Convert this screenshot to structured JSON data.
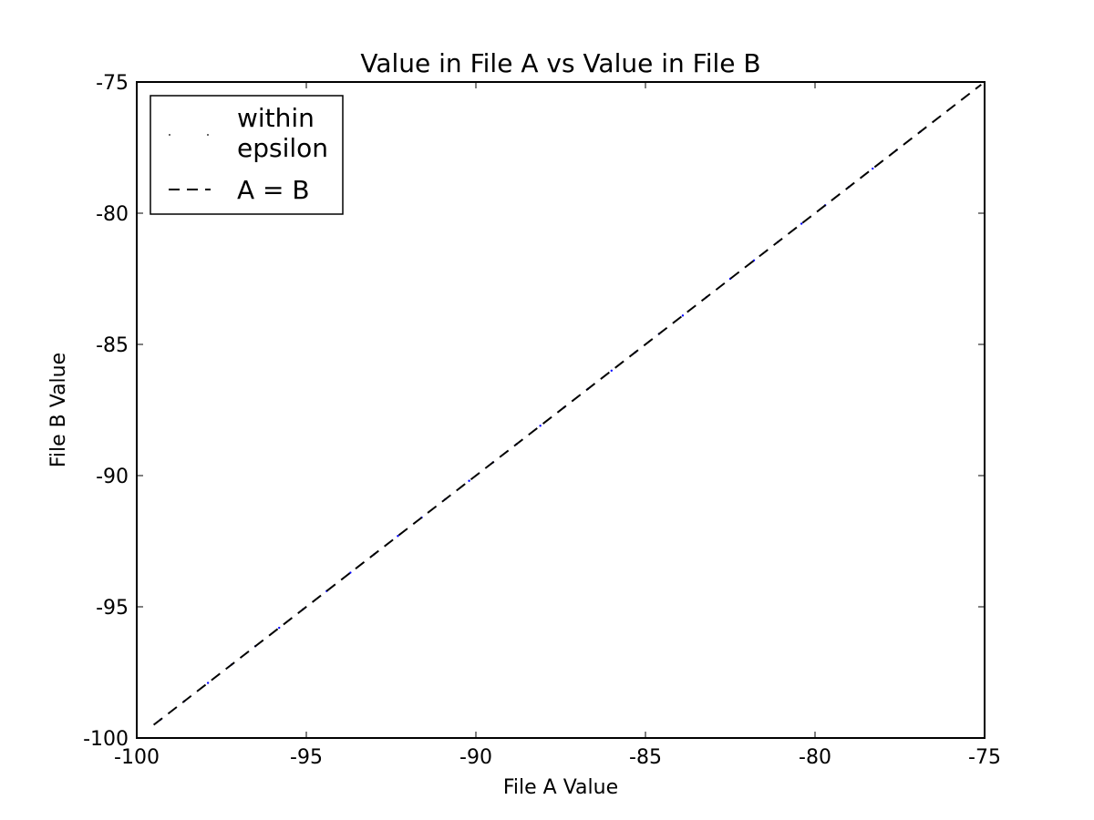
{
  "chart_data": {
    "type": "scatter",
    "title": "Value in File A vs Value in File B",
    "xlabel": "File A Value",
    "ylabel": "File B Value",
    "xlim": [
      -100,
      -75
    ],
    "ylim": [
      -100,
      -75
    ],
    "x_ticks": [
      -100,
      -95,
      -90,
      -85,
      -80,
      -75
    ],
    "y_ticks": [
      -100,
      -95,
      -90,
      -85,
      -80,
      -75
    ],
    "grid": false,
    "legend_position": "top-left",
    "series": [
      {
        "name": "within\nepsilon",
        "style": "points",
        "color": "#0000ff",
        "x": [
          -99.3,
          -98.6,
          -97.9,
          -97.2,
          -96.5,
          -95.8,
          -95.1,
          -94.4,
          -93.7,
          -93.0,
          -92.3,
          -91.6,
          -90.9,
          -90.2,
          -89.5,
          -88.8,
          -88.1,
          -87.4,
          -86.7,
          -86.0,
          -85.3,
          -84.6,
          -83.9,
          -83.2,
          -82.5,
          -81.8,
          -81.1,
          -80.4,
          -79.7,
          -79.0,
          -78.3,
          -77.6,
          -76.9
        ],
        "y": [
          -99.3,
          -98.6,
          -97.9,
          -97.2,
          -96.5,
          -95.8,
          -95.1,
          -94.4,
          -93.7,
          -93.0,
          -92.3,
          -91.6,
          -90.9,
          -90.2,
          -89.5,
          -88.8,
          -88.1,
          -87.4,
          -86.7,
          -86.0,
          -85.3,
          -84.6,
          -83.9,
          -83.2,
          -82.5,
          -81.8,
          -81.1,
          -80.4,
          -79.7,
          -79.0,
          -78.3,
          -77.6,
          -76.9
        ]
      },
      {
        "name": "A = B",
        "style": "dashed-line",
        "color": "#000000",
        "x": [
          -99.5,
          -75.1
        ],
        "y": [
          -99.5,
          -75.1
        ]
      }
    ]
  }
}
